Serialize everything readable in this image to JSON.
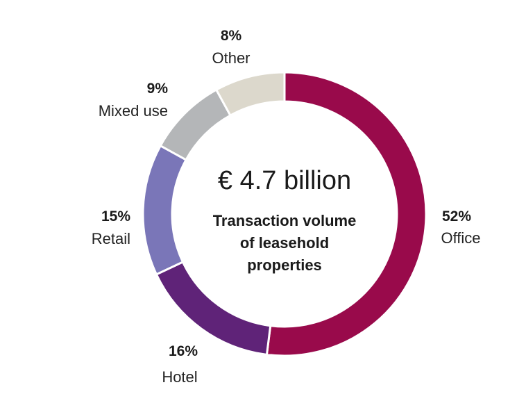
{
  "chart_data": {
    "type": "pie",
    "variant": "donut",
    "center": {
      "value": "€ 4.7 billion",
      "caption_lines": [
        "Transaction volume",
        "of leasehold",
        "properties"
      ]
    },
    "slices": [
      {
        "name": "Office",
        "value": 52,
        "label": "52%",
        "color": "#990a4b"
      },
      {
        "name": "Hotel",
        "value": 16,
        "label": "16%",
        "color": "#5f2378"
      },
      {
        "name": "Retail",
        "value": 15,
        "label": "15%",
        "color": "#7a76b8"
      },
      {
        "name": "Mixed use",
        "value": 9,
        "label": "9%",
        "color": "#b4b6b8"
      },
      {
        "name": "Other",
        "value": 8,
        "label": "8%",
        "color": "#dcd8cc"
      }
    ],
    "start": "top",
    "direction": "clockwise"
  }
}
